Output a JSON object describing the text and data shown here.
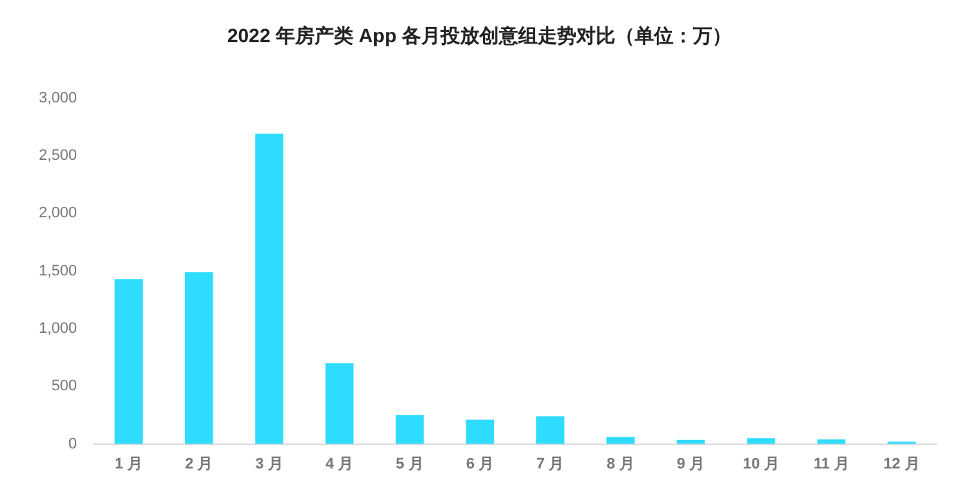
{
  "chart_data": {
    "type": "bar",
    "title": "2022 年房产类 App 各月投放创意组走势对比（单位：万）",
    "categories": [
      "1 月",
      "2 月",
      "3 月",
      "4 月",
      "5 月",
      "6 月",
      "7 月",
      "8 月",
      "9 月",
      "10 月",
      "11 月",
      "12 月"
    ],
    "values": [
      1430,
      1490,
      2690,
      700,
      250,
      210,
      240,
      60,
      35,
      50,
      40,
      20
    ],
    "color": "#2edcff",
    "ylim": [
      0,
      3000
    ],
    "yticks": [
      {
        "value": 0,
        "label": "0"
      },
      {
        "value": 500,
        "label": "500"
      },
      {
        "value": 1000,
        "label": "1,000"
      },
      {
        "value": 1500,
        "label": "1,500"
      },
      {
        "value": 2000,
        "label": "2,000"
      },
      {
        "value": 2500,
        "label": "2,500"
      },
      {
        "value": 3000,
        "label": "3,000"
      }
    ],
    "grid": false,
    "legend": false
  }
}
